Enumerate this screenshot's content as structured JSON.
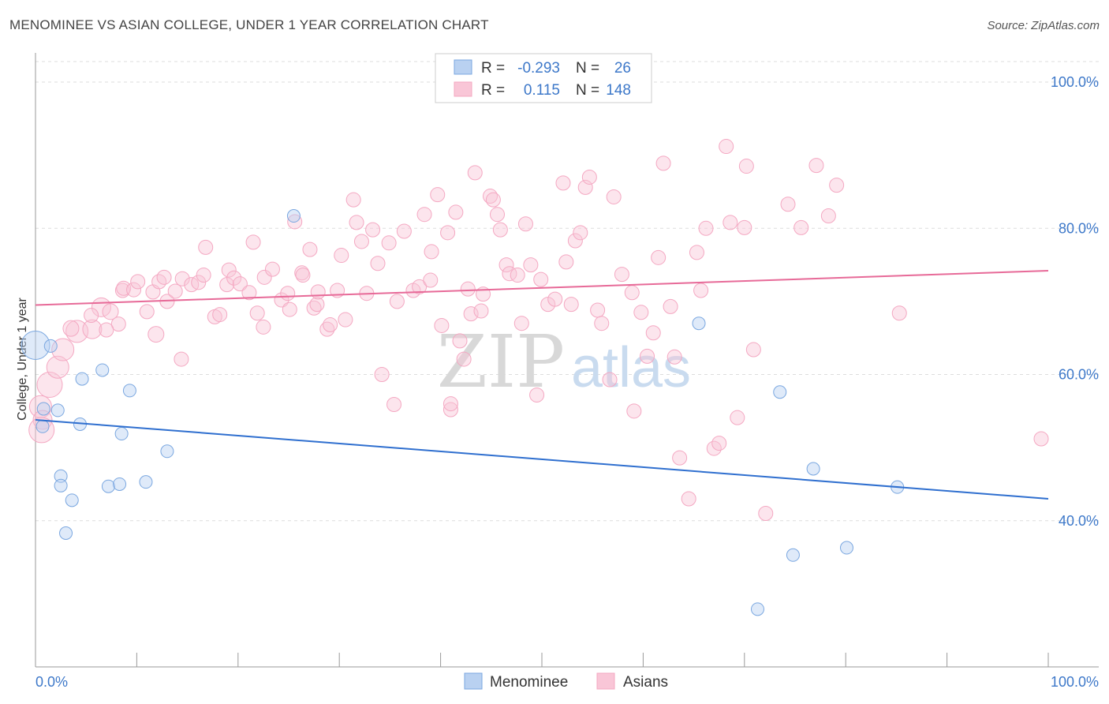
{
  "chart_data": {
    "type": "scatter",
    "title": "MENOMINEE VS ASIAN COLLEGE, UNDER 1 YEAR CORRELATION CHART",
    "source": "Source: ZipAtlas.com",
    "xlabel": "",
    "ylabel": "College, Under 1 year",
    "xlim": [
      0,
      100
    ],
    "ylim": [
      20,
      104
    ],
    "x_tick_labels": [
      "0.0%",
      "100.0%"
    ],
    "y_ticks": [
      {
        "value": 40,
        "label": "40.0%"
      },
      {
        "value": 60,
        "label": "60.0%"
      },
      {
        "value": 80,
        "label": "80.0%"
      },
      {
        "value": 100,
        "label": "100.0%"
      }
    ],
    "watermark": {
      "part1": "ZIP",
      "part2": "atlas"
    },
    "legend_top": [
      {
        "r_label": "R =",
        "r_value": "-0.293",
        "n_label": "N =",
        "n_value": "26"
      },
      {
        "r_label": "R =",
        "r_value": "0.115",
        "n_label": "N =",
        "n_value": "148"
      }
    ],
    "legend_bottom": [
      "Menominee",
      "Asians"
    ],
    "series": [
      {
        "name": "Menominee",
        "color": "#7aa7e0",
        "line_color": "#2f6fcf",
        "r": -0.293,
        "n": 26,
        "trend": {
          "x0": 0,
          "y0": 53.8,
          "x1": 100,
          "y1": 43.0
        },
        "points": [
          [
            0,
            64,
            18
          ],
          [
            1.5,
            63.9,
            8
          ],
          [
            0.8,
            55.3,
            8
          ],
          [
            2.2,
            55.1,
            8
          ],
          [
            0.7,
            52.9,
            8
          ],
          [
            4.4,
            53.2,
            8
          ],
          [
            4.6,
            59.4,
            8
          ],
          [
            6.6,
            60.6,
            8
          ],
          [
            9.3,
            57.8,
            8
          ],
          [
            8.5,
            51.9,
            8
          ],
          [
            13.0,
            49.5,
            8
          ],
          [
            2.5,
            46.1,
            8
          ],
          [
            2.5,
            44.8,
            8
          ],
          [
            3.6,
            42.8,
            8
          ],
          [
            7.2,
            44.7,
            8
          ],
          [
            8.3,
            45.0,
            8
          ],
          [
            10.9,
            45.3,
            8
          ],
          [
            3.0,
            38.3,
            8
          ],
          [
            25.5,
            81.7,
            8
          ],
          [
            65.5,
            67.0,
            8
          ],
          [
            73.5,
            57.6,
            8
          ],
          [
            76.8,
            47.1,
            8
          ],
          [
            85.1,
            44.6,
            8
          ],
          [
            74.8,
            35.3,
            8
          ],
          [
            80.1,
            36.3,
            8
          ],
          [
            71.3,
            27.9,
            8
          ]
        ]
      },
      {
        "name": "Asians",
        "color": "#f4a8c2",
        "line_color": "#e76a98",
        "r": 0.115,
        "n": 148,
        "trend": {
          "x0": 0,
          "y0": 69.5,
          "x1": 100,
          "y1": 74.2
        },
        "points": [
          [
            0.5,
            55.6,
            14
          ],
          [
            0.7,
            53.8,
            12
          ],
          [
            0.6,
            52.4,
            16
          ],
          [
            1.4,
            58.6,
            16
          ],
          [
            2.2,
            61.0,
            14
          ],
          [
            2.7,
            63.4,
            14
          ],
          [
            4.1,
            65.9,
            14
          ],
          [
            5.6,
            66.2,
            12
          ],
          [
            6.5,
            69.2,
            12
          ],
          [
            3.5,
            66.3,
            10
          ],
          [
            7.4,
            68.6,
            10
          ],
          [
            8.2,
            66.9,
            9
          ],
          [
            7.0,
            66.1,
            9
          ],
          [
            5.5,
            68.1,
            9
          ],
          [
            8.6,
            71.5,
            9
          ],
          [
            8.7,
            71.8,
            9
          ],
          [
            9.7,
            71.6,
            9
          ],
          [
            10.1,
            72.7,
            9
          ],
          [
            11.0,
            68.6,
            9
          ],
          [
            11.6,
            71.3,
            9
          ],
          [
            12.2,
            72.7,
            9
          ],
          [
            12.7,
            73.3,
            9
          ],
          [
            13.0,
            70.0,
            9
          ],
          [
            13.8,
            71.4,
            9
          ],
          [
            11.9,
            65.5,
            10
          ],
          [
            14.4,
            62.1,
            9
          ],
          [
            14.5,
            73.1,
            9
          ],
          [
            15.4,
            72.3,
            9
          ],
          [
            16.1,
            72.6,
            9
          ],
          [
            16.6,
            73.6,
            9
          ],
          [
            16.8,
            77.4,
            9
          ],
          [
            17.7,
            67.9,
            9
          ],
          [
            18.2,
            68.2,
            9
          ],
          [
            18.9,
            72.3,
            9
          ],
          [
            19.1,
            74.3,
            9
          ],
          [
            19.6,
            73.2,
            9
          ],
          [
            20.2,
            72.4,
            9
          ],
          [
            21.1,
            71.2,
            9
          ],
          [
            21.5,
            78.1,
            9
          ],
          [
            21.9,
            68.4,
            9
          ],
          [
            22.5,
            66.5,
            9
          ],
          [
            22.6,
            73.3,
            9
          ],
          [
            23.4,
            74.4,
            9
          ],
          [
            24.3,
            70.2,
            9
          ],
          [
            24.9,
            71.1,
            9
          ],
          [
            25.1,
            68.9,
            9
          ],
          [
            25.6,
            80.9,
            9
          ],
          [
            26.3,
            73.9,
            9
          ],
          [
            26.4,
            73.6,
            9
          ],
          [
            27.1,
            77.1,
            9
          ],
          [
            27.5,
            69.1,
            9
          ],
          [
            27.8,
            69.6,
            9
          ],
          [
            27.9,
            71.3,
            9
          ],
          [
            28.8,
            66.2,
            9
          ],
          [
            29.1,
            66.8,
            9
          ],
          [
            29.8,
            71.5,
            9
          ],
          [
            30.2,
            76.3,
            9
          ],
          [
            30.6,
            67.5,
            9
          ],
          [
            31.4,
            83.9,
            9
          ],
          [
            31.7,
            80.8,
            9
          ],
          [
            32.2,
            78.2,
            9
          ],
          [
            32.7,
            71.1,
            9
          ],
          [
            33.3,
            79.8,
            9
          ],
          [
            33.8,
            75.2,
            9
          ],
          [
            34.2,
            60.0,
            9
          ],
          [
            34.9,
            78.0,
            9
          ],
          [
            35.4,
            55.9,
            9
          ],
          [
            35.7,
            70.0,
            9
          ],
          [
            36.4,
            79.6,
            9
          ],
          [
            37.3,
            71.5,
            9
          ],
          [
            37.9,
            72.0,
            9
          ],
          [
            38.4,
            81.9,
            9
          ],
          [
            39.0,
            72.9,
            9
          ],
          [
            39.1,
            76.8,
            9
          ],
          [
            39.7,
            84.6,
            9
          ],
          [
            40.1,
            66.7,
            9
          ],
          [
            40.7,
            79.4,
            9
          ],
          [
            41.0,
            55.2,
            9
          ],
          [
            41.5,
            82.2,
            9
          ],
          [
            41.9,
            64.6,
            9
          ],
          [
            42.3,
            62.1,
            9
          ],
          [
            42.7,
            71.7,
            9
          ],
          [
            43.0,
            68.3,
            9
          ],
          [
            43.4,
            87.6,
            9
          ],
          [
            44.0,
            68.7,
            9
          ],
          [
            44.2,
            71.0,
            9
          ],
          [
            44.9,
            84.4,
            9
          ],
          [
            45.2,
            83.9,
            9
          ],
          [
            45.6,
            81.9,
            9
          ],
          [
            45.9,
            79.8,
            9
          ],
          [
            46.5,
            75.0,
            9
          ],
          [
            46.8,
            73.8,
            9
          ],
          [
            47.6,
            73.6,
            9
          ],
          [
            48.0,
            67.0,
            9
          ],
          [
            48.4,
            80.6,
            9
          ],
          [
            48.9,
            75.0,
            9
          ],
          [
            49.5,
            57.2,
            9
          ],
          [
            49.9,
            73.0,
            9
          ],
          [
            50.6,
            69.6,
            9
          ],
          [
            51.3,
            70.3,
            9
          ],
          [
            52.1,
            86.2,
            9
          ],
          [
            52.4,
            75.4,
            9
          ],
          [
            52.9,
            69.6,
            9
          ],
          [
            53.3,
            78.3,
            9
          ],
          [
            53.8,
            79.4,
            9
          ],
          [
            54.3,
            85.6,
            9
          ],
          [
            54.7,
            87.0,
            9
          ],
          [
            55.5,
            68.8,
            9
          ],
          [
            55.9,
            67.0,
            9
          ],
          [
            56.7,
            59.3,
            9
          ],
          [
            57.1,
            84.3,
            9
          ],
          [
            57.9,
            73.7,
            9
          ],
          [
            58.9,
            71.2,
            9
          ],
          [
            59.1,
            55.0,
            9
          ],
          [
            59.8,
            68.5,
            9
          ],
          [
            60.4,
            62.5,
            9
          ],
          [
            61.0,
            65.7,
            9
          ],
          [
            61.5,
            76.0,
            9
          ],
          [
            62.0,
            88.9,
            9
          ],
          [
            62.7,
            69.3,
            9
          ],
          [
            63.1,
            62.4,
            9
          ],
          [
            63.6,
            48.6,
            9
          ],
          [
            64.5,
            43.0,
            9
          ],
          [
            65.3,
            76.7,
            9
          ],
          [
            65.7,
            71.5,
            9
          ],
          [
            66.2,
            80.0,
            9
          ],
          [
            67.0,
            49.9,
            9
          ],
          [
            67.5,
            50.6,
            9
          ],
          [
            68.2,
            91.2,
            9
          ],
          [
            68.6,
            80.8,
            9
          ],
          [
            69.3,
            54.1,
            9
          ],
          [
            70.0,
            80.1,
            9
          ],
          [
            70.2,
            88.5,
            9
          ],
          [
            70.9,
            63.4,
            9
          ],
          [
            72.1,
            41.0,
            9
          ],
          [
            74.3,
            83.3,
            9
          ],
          [
            75.6,
            80.1,
            9
          ],
          [
            77.1,
            88.6,
            9
          ],
          [
            78.3,
            81.7,
            9
          ],
          [
            79.1,
            85.9,
            9
          ],
          [
            85.3,
            68.4,
            9
          ],
          [
            99.3,
            51.2,
            9
          ],
          [
            41.0,
            56.0,
            9
          ]
        ]
      }
    ]
  }
}
